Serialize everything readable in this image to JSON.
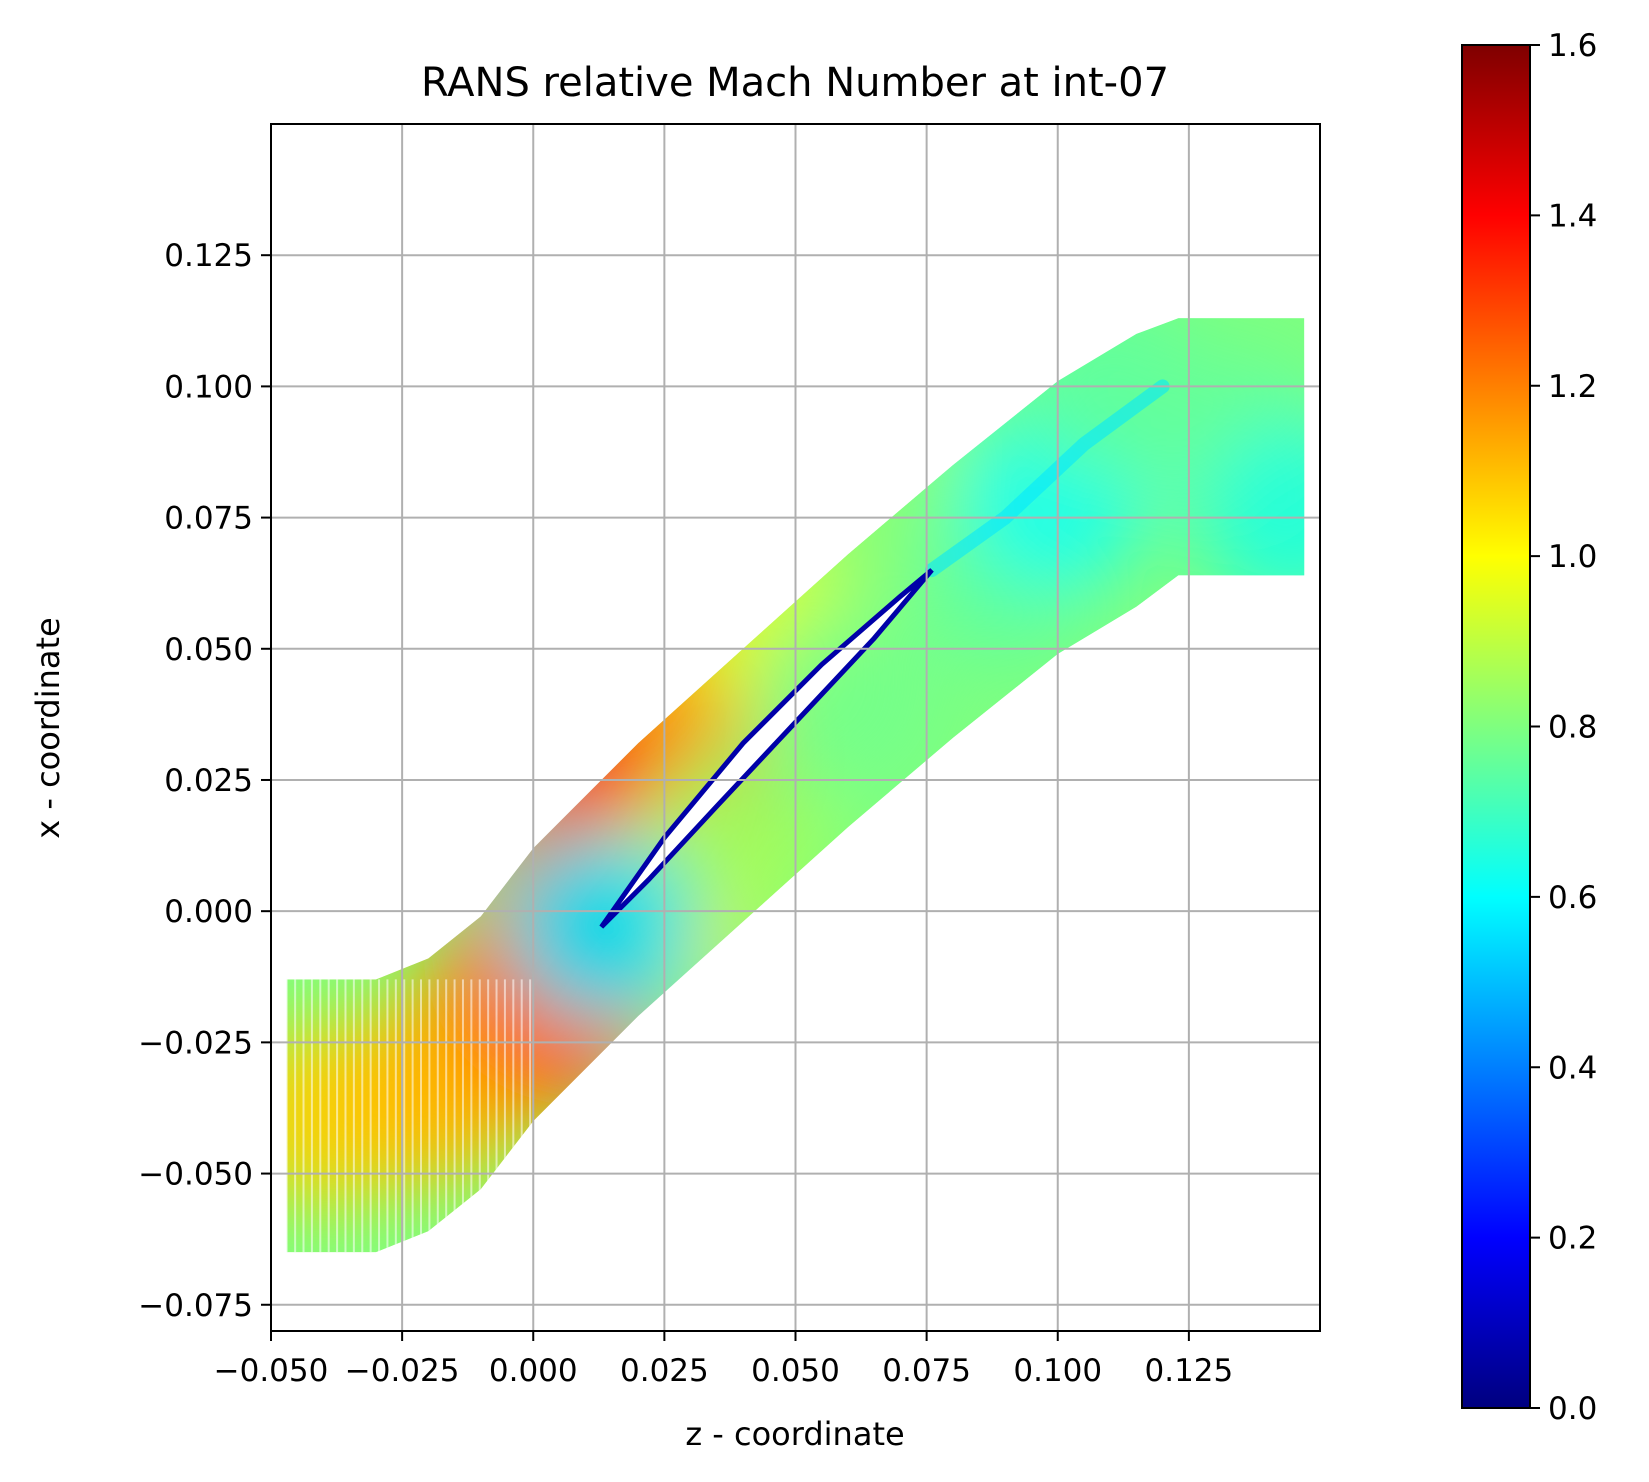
{
  "chart_data": {
    "type": "heatmap",
    "title": "RANS relative Mach Number at int-07",
    "xlabel": "z - coordinate",
    "ylabel": "x - coordinate",
    "xlim": [
      -0.05,
      0.15
    ],
    "ylim": [
      -0.08,
      0.15
    ],
    "x_ticks": [
      -0.05,
      -0.025,
      0.0,
      0.025,
      0.05,
      0.075,
      0.1,
      0.125
    ],
    "x_tick_labels": [
      "−0.050",
      "−0.025",
      "0.000",
      "0.025",
      "0.050",
      "0.075",
      "0.100",
      "0.125"
    ],
    "y_ticks": [
      -0.075,
      -0.05,
      -0.025,
      0.0,
      0.025,
      0.05,
      0.075,
      0.1,
      0.125
    ],
    "y_tick_labels": [
      "−0.075",
      "−0.050",
      "−0.025",
      "0.000",
      "0.025",
      "0.050",
      "0.075",
      "0.100",
      "0.125"
    ],
    "grid": true,
    "colormap": "jet",
    "colorbar": {
      "min": 0.0,
      "max": 1.6,
      "ticks": [
        0.0,
        0.2,
        0.4,
        0.6,
        0.8,
        1.0,
        1.2,
        1.4,
        1.6
      ],
      "tick_labels": [
        "0.0",
        "0.2",
        "0.4",
        "0.6",
        "0.8",
        "1.0",
        "1.2",
        "1.4",
        "1.6"
      ]
    },
    "passage": {
      "upper_boundary": [
        [
          -0.047,
          -0.013
        ],
        [
          -0.03,
          -0.013
        ],
        [
          -0.02,
          -0.009
        ],
        [
          -0.01,
          -0.001
        ],
        [
          0.0,
          0.012
        ],
        [
          0.02,
          0.032
        ],
        [
          0.04,
          0.05
        ],
        [
          0.06,
          0.068
        ],
        [
          0.08,
          0.085
        ],
        [
          0.1,
          0.101
        ],
        [
          0.115,
          0.11
        ],
        [
          0.123,
          0.113
        ],
        [
          0.147,
          0.113
        ]
      ],
      "lower_boundary": [
        [
          -0.047,
          -0.065
        ],
        [
          -0.03,
          -0.065
        ],
        [
          -0.02,
          -0.061
        ],
        [
          -0.01,
          -0.053
        ],
        [
          0.0,
          -0.04
        ],
        [
          0.02,
          -0.02
        ],
        [
          0.04,
          -0.002
        ],
        [
          0.06,
          0.016
        ],
        [
          0.08,
          0.033
        ],
        [
          0.1,
          0.049
        ],
        [
          0.115,
          0.058
        ],
        [
          0.123,
          0.064
        ],
        [
          0.147,
          0.064
        ]
      ]
    },
    "blade": {
      "leading_edge": [
        0.013,
        -0.003
      ],
      "trailing_edge": [
        0.076,
        0.065
      ],
      "suction_side": [
        [
          0.013,
          -0.003
        ],
        [
          0.025,
          0.014
        ],
        [
          0.04,
          0.032
        ],
        [
          0.055,
          0.047
        ],
        [
          0.07,
          0.06
        ],
        [
          0.076,
          0.065
        ]
      ],
      "pressure_side": [
        [
          0.076,
          0.065
        ],
        [
          0.065,
          0.052
        ],
        [
          0.05,
          0.036
        ],
        [
          0.035,
          0.02
        ],
        [
          0.022,
          0.006
        ],
        [
          0.013,
          -0.003
        ]
      ]
    },
    "field_samples": [
      {
        "z": -0.04,
        "x": -0.039,
        "mach": 1.07
      },
      {
        "z": -0.02,
        "x": -0.035,
        "mach": 1.1
      },
      {
        "z": -0.01,
        "x": -0.027,
        "mach": 1.12
      },
      {
        "z": 0.0,
        "x": -0.012,
        "mach": 1.2
      },
      {
        "z": 0.005,
        "x": -0.02,
        "mach": 1.25
      },
      {
        "z": 0.01,
        "x": 0.01,
        "mach": 1.28
      },
      {
        "z": 0.02,
        "x": 0.03,
        "mach": 1.4
      },
      {
        "z": 0.03,
        "x": 0.028,
        "mach": 1.38
      },
      {
        "z": 0.03,
        "x": 0.046,
        "mach": 1.15
      },
      {
        "z": 0.045,
        "x": 0.055,
        "mach": 0.95
      },
      {
        "z": 0.027,
        "x": 0.005,
        "mach": 1.05
      },
      {
        "z": 0.04,
        "x": 0.015,
        "mach": 0.85
      },
      {
        "z": 0.06,
        "x": 0.04,
        "mach": 0.78
      },
      {
        "z": 0.07,
        "x": 0.075,
        "mach": 0.82
      },
      {
        "z": 0.09,
        "x": 0.065,
        "mach": 0.75
      },
      {
        "z": 0.1,
        "x": 0.08,
        "mach": 0.62
      },
      {
        "z": 0.11,
        "x": 0.1,
        "mach": 0.75
      },
      {
        "z": 0.135,
        "x": 0.09,
        "mach": 0.76
      },
      {
        "z": 0.145,
        "x": 0.075,
        "mach": 0.65
      },
      {
        "z": 0.013,
        "x": -0.003,
        "mach": 0.55
      }
    ]
  }
}
